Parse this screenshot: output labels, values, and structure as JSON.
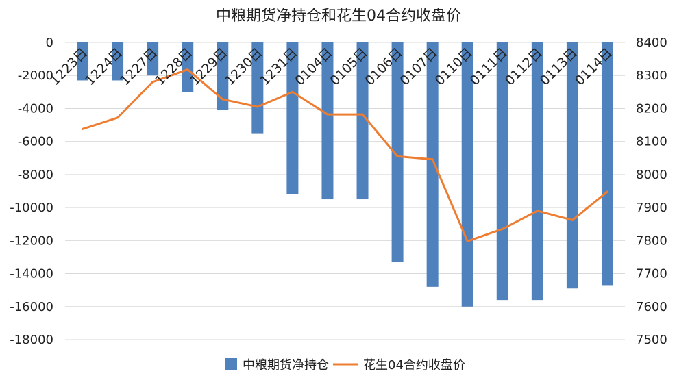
{
  "chart_data": {
    "type": "bar+line",
    "title": "中粮期货净持仓和花生04合约收盘价",
    "categories": [
      "1223日",
      "1224日",
      "1227日",
      "1228日",
      "1229日",
      "1230日",
      "1231日",
      "0104日",
      "0105日",
      "0106日",
      "0107日",
      "0110日",
      "0111日",
      "0112日",
      "0113日",
      "0114日"
    ],
    "series": [
      {
        "name": "中粮期货净持仓",
        "type": "bar",
        "axis": "left",
        "color": "#4f81bd",
        "values": [
          -2300,
          -2300,
          -2000,
          -3000,
          -4100,
          -5500,
          -9200,
          -9500,
          -9500,
          -13300,
          -14800,
          -16000,
          -15600,
          -15600,
          -14900,
          -14700
        ]
      },
      {
        "name": "花生04合约收盘价",
        "type": "line",
        "axis": "right",
        "color": "#ed7d31",
        "values": [
          8138,
          8172,
          8280,
          8318,
          8228,
          8205,
          8250,
          8182,
          8182,
          8055,
          8046,
          7798,
          7835,
          7890,
          7862,
          7948
        ]
      }
    ],
    "y_left": {
      "min": -18000,
      "max": 0,
      "step": 2000,
      "ticks": [
        "0",
        "-2000",
        "-4000",
        "-6000",
        "-8000",
        "-10000",
        "-12000",
        "-14000",
        "-16000",
        "-18000"
      ]
    },
    "y_right": {
      "min": 7500,
      "max": 8400,
      "step": 100,
      "ticks": [
        "8400",
        "8300",
        "8200",
        "8100",
        "8000",
        "7900",
        "7800",
        "7700",
        "7600",
        "7500"
      ]
    },
    "grid": true,
    "legend_position": "bottom"
  }
}
